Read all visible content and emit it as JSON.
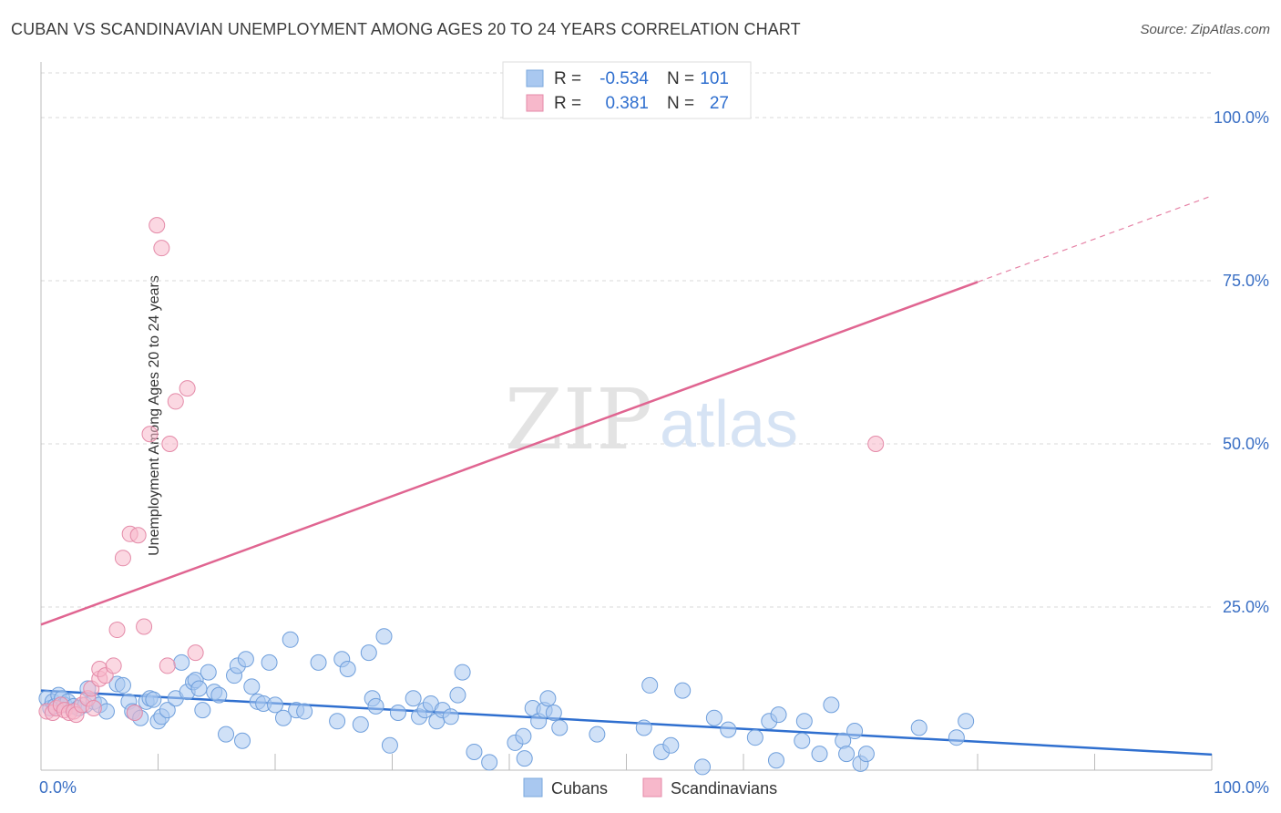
{
  "title": "CUBAN VS SCANDINAVIAN UNEMPLOYMENT AMONG AGES 20 TO 24 YEARS CORRELATION CHART",
  "source": "Source: ZipAtlas.com",
  "watermark": {
    "zip": "ZIP",
    "atlas": "atlas"
  },
  "legend_top": [
    {
      "r_label": "R =",
      "r_value": "-0.534",
      "n_label": "N =",
      "n_value": "101",
      "color": "#a9c8f0"
    },
    {
      "r_label": "R =",
      "r_value": "0.381",
      "n_label": "N =",
      "n_value": "27",
      "color": "#f7b8cb"
    }
  ],
  "legend_bottom": [
    {
      "name": "Cubans",
      "color": "#a9c8f0"
    },
    {
      "name": "Scandinavians",
      "color": "#f7b8cb"
    }
  ],
  "chart_data": {
    "type": "scatter",
    "title": "CUBAN VS SCANDINAVIAN UNEMPLOYMENT AMONG AGES 20 TO 24 YEARS CORRELATION CHART",
    "xlabel": "",
    "ylabel": "Unemployment Among Ages 20 to 24 years",
    "xlim": [
      0,
      100
    ],
    "ylim": [
      0,
      100
    ],
    "x_tick_labels": [
      "0.0%",
      "100.0%"
    ],
    "y_ticks": [
      25,
      50,
      75,
      100
    ],
    "y_tick_labels": [
      "25.0%",
      "50.0%",
      "75.0%",
      "100.0%"
    ],
    "grid": true,
    "legend": "top-center",
    "series": [
      {
        "name": "Cubans",
        "color": "#a9c8f0",
        "line_color": "#2f6fcf",
        "trend": {
          "x0": 0,
          "y0": 12.2,
          "x1": 100,
          "y1": 2.4
        },
        "points": [
          [
            0.5,
            11
          ],
          [
            0.8,
            9.5
          ],
          [
            1,
            10.5
          ],
          [
            1.2,
            9.8
          ],
          [
            1.5,
            11.5
          ],
          [
            1.8,
            11
          ],
          [
            2,
            10
          ],
          [
            2.3,
            10.5
          ],
          [
            2.8,
            9.8
          ],
          [
            3.2,
            9.5
          ],
          [
            3.8,
            10
          ],
          [
            4,
            12.5
          ],
          [
            4.5,
            10.5
          ],
          [
            5,
            10
          ],
          [
            5.6,
            9
          ],
          [
            6.5,
            13.2
          ],
          [
            7,
            13
          ],
          [
            7.5,
            10.5
          ],
          [
            7.8,
            9
          ],
          [
            8,
            8.8
          ],
          [
            8.5,
            8
          ],
          [
            9,
            10.5
          ],
          [
            9.3,
            11
          ],
          [
            9.6,
            10.8
          ],
          [
            10,
            7.5
          ],
          [
            10.3,
            8.2
          ],
          [
            10.8,
            9.2
          ],
          [
            11.5,
            11
          ],
          [
            12,
            16.5
          ],
          [
            12.5,
            12
          ],
          [
            13,
            13.5
          ],
          [
            13.2,
            13.8
          ],
          [
            13.5,
            12.5
          ],
          [
            13.8,
            9.2
          ],
          [
            14.3,
            15
          ],
          [
            14.8,
            12
          ],
          [
            15.2,
            11.5
          ],
          [
            15.8,
            5.5
          ],
          [
            16.5,
            14.5
          ],
          [
            16.8,
            16
          ],
          [
            17.2,
            4.5
          ],
          [
            17.5,
            17
          ],
          [
            18,
            12.8
          ],
          [
            18.5,
            10.5
          ],
          [
            19,
            10.2
          ],
          [
            19.5,
            16.5
          ],
          [
            20,
            10
          ],
          [
            20.7,
            8
          ],
          [
            21.3,
            20
          ],
          [
            21.8,
            9.2
          ],
          [
            22.5,
            9
          ],
          [
            23.7,
            16.5
          ],
          [
            25.3,
            7.5
          ],
          [
            25.7,
            17
          ],
          [
            26.2,
            15.5
          ],
          [
            27.3,
            7
          ],
          [
            28,
            18
          ],
          [
            28.3,
            11
          ],
          [
            28.6,
            9.8
          ],
          [
            29.3,
            20.5
          ],
          [
            29.8,
            3.8
          ],
          [
            30.5,
            8.8
          ],
          [
            31.8,
            11
          ],
          [
            32.3,
            8.2
          ],
          [
            32.8,
            9.2
          ],
          [
            33.3,
            10.2
          ],
          [
            33.8,
            7.5
          ],
          [
            34.3,
            9.2
          ],
          [
            35,
            8.2
          ],
          [
            35.6,
            11.5
          ],
          [
            36,
            15
          ],
          [
            37,
            2.8
          ],
          [
            38.3,
            1.2
          ],
          [
            40.5,
            4.2
          ],
          [
            41.2,
            5.2
          ],
          [
            41.3,
            1.8
          ],
          [
            42,
            9.5
          ],
          [
            42.5,
            7.5
          ],
          [
            43,
            9.2
          ],
          [
            43.3,
            11
          ],
          [
            43.8,
            8.8
          ],
          [
            44.3,
            6.5
          ],
          [
            47.5,
            5.5
          ],
          [
            51.5,
            6.5
          ],
          [
            52,
            13
          ],
          [
            53,
            2.8
          ],
          [
            53.8,
            3.8
          ],
          [
            54.8,
            12.2
          ],
          [
            56.5,
            0.5
          ],
          [
            57.5,
            8
          ],
          [
            58.7,
            6.2
          ],
          [
            61,
            5
          ],
          [
            62.2,
            7.5
          ],
          [
            62.8,
            1.5
          ],
          [
            63,
            8.5
          ],
          [
            65,
            4.5
          ],
          [
            65.2,
            7.5
          ],
          [
            66.5,
            2.5
          ],
          [
            67.5,
            10
          ],
          [
            68.5,
            4.5
          ],
          [
            68.8,
            2.5
          ],
          [
            69.5,
            6
          ],
          [
            70,
            1
          ],
          [
            70.5,
            2.5
          ],
          [
            75,
            6.5
          ],
          [
            78.2,
            5
          ],
          [
            79,
            7.5
          ]
        ]
      },
      {
        "name": "Scandinavians",
        "color": "#f7b8cb",
        "line_color": "#e06591",
        "trend": {
          "x0": 0,
          "y0": 22.3,
          "x1": 80,
          "y1": 74.8,
          "dash_to_x": 100,
          "dash_to_y": 88
        },
        "points": [
          [
            0.5,
            9
          ],
          [
            1,
            8.8
          ],
          [
            1.3,
            9.5
          ],
          [
            1.7,
            10
          ],
          [
            2,
            9.2
          ],
          [
            2.4,
            8.8
          ],
          [
            2.8,
            9
          ],
          [
            3,
            8.5
          ],
          [
            3.5,
            10
          ],
          [
            4,
            11
          ],
          [
            4.3,
            12.5
          ],
          [
            4.5,
            9.5
          ],
          [
            5,
            14
          ],
          [
            5,
            15.5
          ],
          [
            5.5,
            14.5
          ],
          [
            6.2,
            16
          ],
          [
            6.5,
            21.5
          ],
          [
            7,
            32.5
          ],
          [
            7.6,
            36.2
          ],
          [
            8,
            8.8
          ],
          [
            8.3,
            36
          ],
          [
            8.8,
            22
          ],
          [
            9.3,
            51.5
          ],
          [
            9.9,
            83.5
          ],
          [
            10.3,
            80
          ],
          [
            10.8,
            16
          ],
          [
            11,
            50
          ],
          [
            11.5,
            56.5
          ],
          [
            12.5,
            58.5
          ],
          [
            13.2,
            18
          ],
          [
            71.3,
            50
          ]
        ]
      }
    ]
  }
}
